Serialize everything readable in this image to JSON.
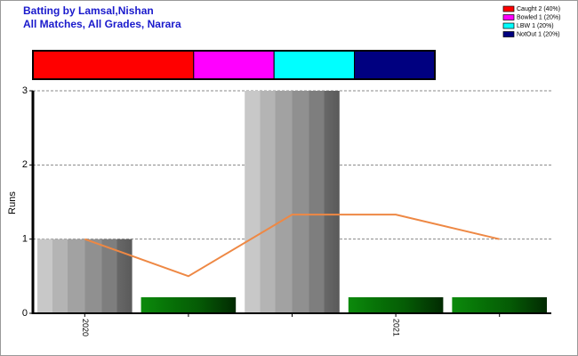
{
  "chart_data": [
    {
      "type": "bar",
      "title": "Batting by Lamsal,Nishan",
      "subtitle": "All Matches, All Grades, Narara",
      "y_label": "Runs",
      "categories": [
        "2020",
        null,
        null,
        "2021",
        null
      ],
      "series": [
        {
          "type": "bar",
          "values": [
            1,
            0,
            3,
            0,
            0
          ],
          "color": "#999999",
          "zero_color": "#0a7a0a"
        },
        {
          "type": "line",
          "values": [
            1,
            0.5,
            1.33,
            1.33,
            1
          ],
          "color": "#ee8844"
        }
      ],
      "ylim": [
        0,
        3
      ],
      "yticks": [
        0,
        1,
        2,
        3
      ],
      "grid": true
    },
    {
      "type": "stacked-bar",
      "legend": "top-right",
      "series": [
        {
          "name": "Caught 2 (40%)",
          "color": "#ff0000",
          "values": [
            40
          ]
        },
        {
          "name": "Bowled 1 (20%)",
          "color": "#ff00ff",
          "values": [
            20
          ]
        },
        {
          "name": "LBW 1 (20%)",
          "color": "#00ffff",
          "values": [
            20
          ]
        },
        {
          "name": "NotOut 1 (20%)",
          "color": "#000080",
          "values": [
            20
          ]
        }
      ],
      "xlim": [
        0,
        100
      ]
    }
  ]
}
